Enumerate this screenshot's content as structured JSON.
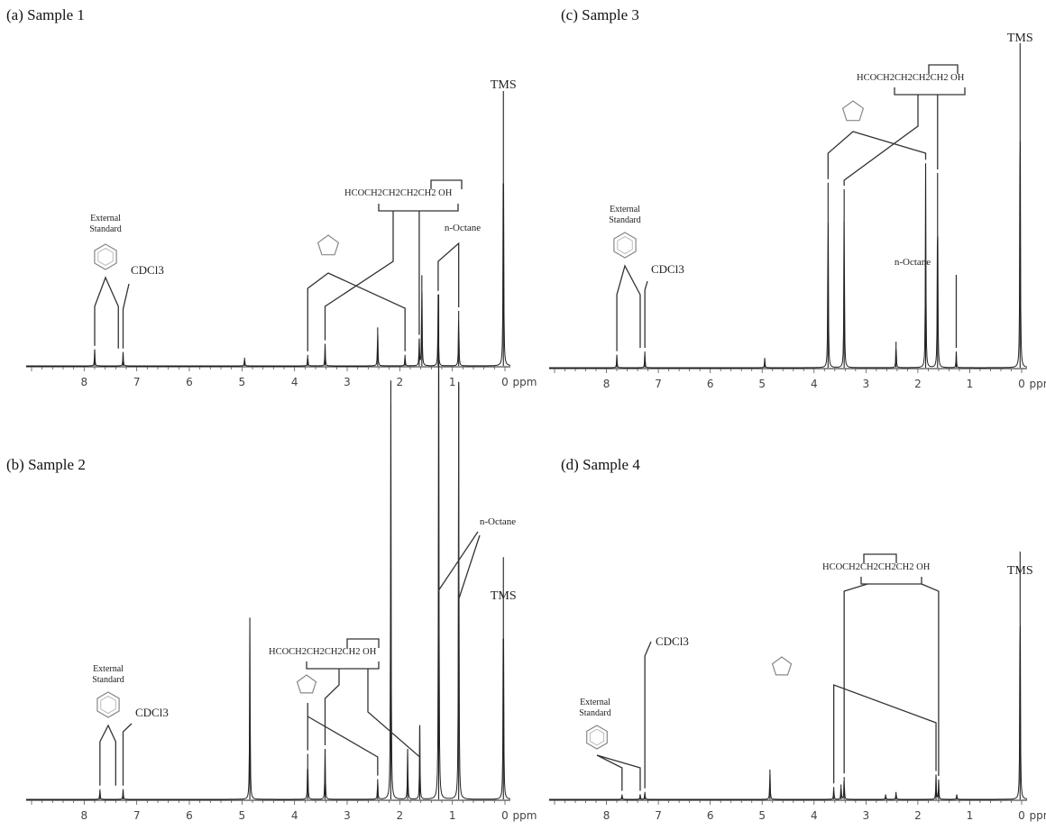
{
  "chart_data": [
    {
      "type": "line",
      "title": "(a) Sample 1",
      "xlabel": "ppm",
      "xlim": [
        9,
        0
      ],
      "x_ticks": [
        "8",
        "7",
        "6",
        "5",
        "4",
        "3",
        "2",
        "1",
        "0"
      ],
      "peaks": [
        {
          "x": 7.8,
          "height": 0.06
        },
        {
          "x": 7.26,
          "height": 0.05
        },
        {
          "x": 4.95,
          "height": 0.03
        },
        {
          "x": 3.75,
          "height": 0.04
        },
        {
          "x": 3.42,
          "height": 0.08
        },
        {
          "x": 2.42,
          "height": 0.14
        },
        {
          "x": 1.9,
          "height": 0.04
        },
        {
          "x": 1.63,
          "height": 0.1
        },
        {
          "x": 1.58,
          "height": 0.33
        },
        {
          "x": 1.27,
          "height": 0.26
        },
        {
          "x": 0.88,
          "height": 0.2
        },
        {
          "x": 0.03,
          "height": 1.0
        }
      ],
      "labels": {
        "tms": "TMS",
        "octane": "n-Octane",
        "cdcl3": "CDCl3",
        "ext_standard_1": "External",
        "ext_standard_2": "Standard",
        "polymer": "HCOCH2CH2CH2CH2 OH"
      }
    },
    {
      "type": "line",
      "title": "(c) Sample 3",
      "xlabel": "ppm",
      "xlim": [
        9,
        0
      ],
      "x_ticks": [
        "8",
        "7",
        "6",
        "5",
        "4",
        "3",
        "2",
        "1",
        "0"
      ],
      "peaks": [
        {
          "x": 7.8,
          "height": 0.04
        },
        {
          "x": 7.26,
          "height": 0.05
        },
        {
          "x": 4.95,
          "height": 0.03
        },
        {
          "x": 3.73,
          "height": 0.57
        },
        {
          "x": 3.42,
          "height": 0.55
        },
        {
          "x": 2.42,
          "height": 0.08
        },
        {
          "x": 1.85,
          "height": 0.63
        },
        {
          "x": 1.62,
          "height": 0.6
        },
        {
          "x": 1.26,
          "height": 0.05
        },
        {
          "x": 0.03,
          "height": 1.0
        }
      ],
      "labels": {
        "tms": "TMS",
        "octane": "n-Octane",
        "cdcl3": "CDCl3",
        "ext_standard_1": "External",
        "ext_standard_2": "Standard",
        "polymer": "HCOCH2CH2CH2CH2 OH"
      }
    },
    {
      "type": "line",
      "title": "(b) Sample 2",
      "xlabel": "ppm",
      "xlim": [
        9,
        0
      ],
      "x_ticks": [
        "8",
        "7",
        "6",
        "5",
        "4",
        "3",
        "2",
        "1",
        "0"
      ],
      "peaks": [
        {
          "x": 7.7,
          "height": 0.02
        },
        {
          "x": 7.26,
          "height": 0.02
        },
        {
          "x": 4.85,
          "height": 0.36
        },
        {
          "x": 3.75,
          "height": 0.09
        },
        {
          "x": 3.42,
          "height": 0.1
        },
        {
          "x": 2.42,
          "height": 0.04
        },
        {
          "x": 2.17,
          "height": 0.83
        },
        {
          "x": 1.85,
          "height": 0.1
        },
        {
          "x": 1.62,
          "height": 0.14
        },
        {
          "x": 1.26,
          "height": 1.0
        },
        {
          "x": 0.88,
          "height": 0.82
        },
        {
          "x": 0.03,
          "height": 0.48
        }
      ],
      "labels": {
        "tms": "TMS",
        "octane": "n-Octane",
        "cdcl3": "CDCl3",
        "ext_standard_1": "External",
        "ext_standard_2": "Standard",
        "polymer": "HCOCH2CH2CH2CH2 OH"
      }
    },
    {
      "type": "line",
      "title": "(d) Sample 4",
      "xlabel": "ppm",
      "xlim": [
        9,
        0
      ],
      "x_ticks": [
        "8",
        "7",
        "6",
        "5",
        "4",
        "3",
        "2",
        "1",
        "0"
      ],
      "peaks": [
        {
          "x": 7.7,
          "height": 0.02
        },
        {
          "x": 7.35,
          "height": 0.02
        },
        {
          "x": 7.26,
          "height": 0.03
        },
        {
          "x": 4.85,
          "height": 0.12
        },
        {
          "x": 3.62,
          "height": 0.05
        },
        {
          "x": 3.48,
          "height": 0.06
        },
        {
          "x": 3.42,
          "height": 0.09
        },
        {
          "x": 2.62,
          "height": 0.02
        },
        {
          "x": 2.42,
          "height": 0.03
        },
        {
          "x": 1.65,
          "height": 0.1
        },
        {
          "x": 1.6,
          "height": 0.08
        },
        {
          "x": 1.25,
          "height": 0.02
        },
        {
          "x": 0.03,
          "height": 1.0
        }
      ],
      "labels": {
        "tms": "TMS",
        "cdcl3": "CDCl3",
        "ext_standard_1": "External",
        "ext_standard_2": "Standard",
        "polymer": "HCOCH2CH2CH2CH2 OH"
      }
    }
  ]
}
